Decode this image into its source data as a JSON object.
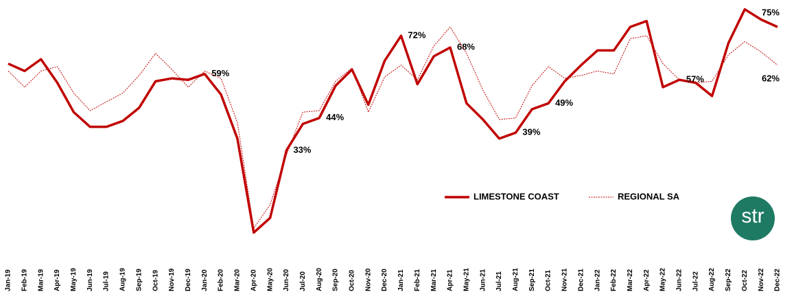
{
  "chart_data": {
    "type": "line",
    "categories": [
      "Jan-19",
      "Feb-19",
      "Mar-19",
      "Apr-19",
      "May-19",
      "Jun-19",
      "Jul-19",
      "Aug-19",
      "Sep-19",
      "Oct-19",
      "Nov-19",
      "Dec-19",
      "Jan-20",
      "Feb-20",
      "Mar-20",
      "Apr-20",
      "May-20",
      "Jun-20",
      "Jul-20",
      "Aug-20",
      "Sep-20",
      "Oct-20",
      "Nov-20",
      "Dec-20",
      "Jan-21",
      "Feb-21",
      "Mar-21",
      "Apr-21",
      "May-21",
      "Jun-21",
      "Jul-21",
      "Aug-21",
      "Sep-21",
      "Oct-21",
      "Nov-21",
      "Dec-21",
      "Jan-22",
      "Feb-22",
      "Mar-22",
      "Apr-22",
      "May-22",
      "Jun-22",
      "Jul-22",
      "Aug-22",
      "Sep-22",
      "Oct-22",
      "Nov-22",
      "Dec-22"
    ],
    "series": [
      {
        "name": "LIMESTONE COAST",
        "color": "#c00000",
        "style": "solid",
        "values": [
          62.5,
          60,
          64,
          56,
          46,
          41,
          41,
          43,
          47.5,
          56.5,
          57.5,
          57,
          59,
          52,
          37,
          5,
          10,
          33,
          42,
          44,
          55,
          60.5,
          48.5,
          63.5,
          72,
          55.5,
          65,
          68,
          49,
          43.5,
          37,
          39,
          47,
          49,
          56.5,
          62,
          67,
          67,
          75,
          77,
          54.5,
          57,
          56,
          51.5,
          69.5,
          81,
          77.5,
          75
        ],
        "value_labels": [
          null,
          null,
          null,
          null,
          null,
          null,
          null,
          null,
          null,
          null,
          null,
          null,
          "59%",
          null,
          null,
          null,
          null,
          "33%",
          null,
          "44%",
          null,
          null,
          null,
          null,
          "72%",
          null,
          null,
          "68%",
          null,
          null,
          null,
          "39%",
          null,
          "49%",
          null,
          null,
          null,
          null,
          null,
          null,
          null,
          "57%",
          null,
          null,
          null,
          null,
          null,
          "75%"
        ]
      },
      {
        "name": "REGIONAL SA",
        "color": "#c00000",
        "style": "dotted",
        "values": [
          60,
          54.5,
          60,
          61.5,
          52.5,
          46.5,
          49.5,
          52.5,
          58.5,
          66,
          60.5,
          54.5,
          60,
          57.5,
          42.5,
          6.5,
          14.5,
          31.5,
          46,
          46.5,
          56.5,
          61,
          46,
          58,
          62,
          57,
          68.5,
          75,
          66,
          53.5,
          43.5,
          44,
          55,
          61.5,
          57.5,
          58.5,
          60,
          59,
          71,
          72,
          62.5,
          57,
          56,
          56.5,
          65.5,
          70,
          66.5,
          62
        ],
        "value_labels": [
          null,
          null,
          null,
          null,
          null,
          null,
          null,
          null,
          null,
          null,
          null,
          null,
          null,
          null,
          null,
          null,
          null,
          null,
          null,
          null,
          null,
          null,
          null,
          null,
          null,
          null,
          null,
          null,
          null,
          null,
          null,
          null,
          null,
          null,
          null,
          null,
          null,
          null,
          null,
          null,
          null,
          null,
          null,
          null,
          null,
          null,
          null,
          "62%"
        ]
      }
    ],
    "ylim": [
      0,
      83
    ],
    "grid": false,
    "legend": "center-right",
    "logo": "str"
  }
}
